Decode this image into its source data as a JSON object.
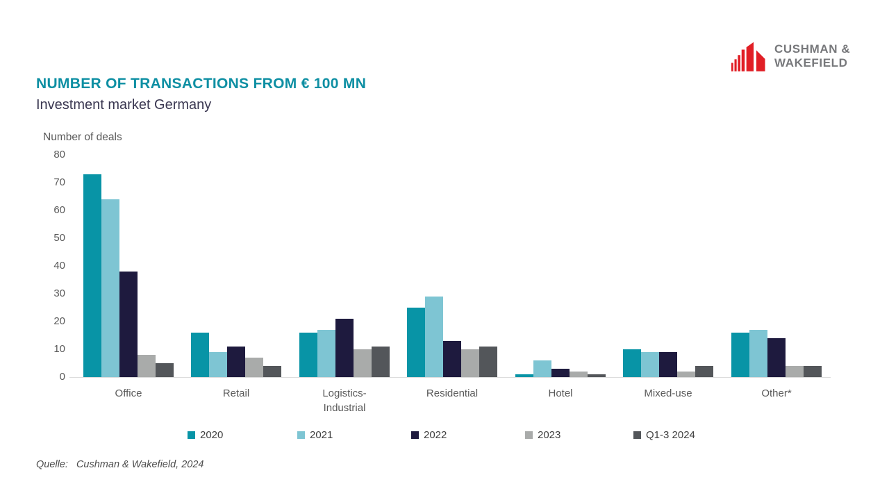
{
  "header": {
    "title": "NUMBER OF TRANSACTIONS FROM € 100 MN",
    "subtitle": "Investment market Germany"
  },
  "logo": {
    "line1": "CUSHMAN &",
    "line2": "WAKEFIELD",
    "mark_color": "#E11F26",
    "text_color": "#77787B"
  },
  "source": {
    "label": "Quelle:",
    "value": "Cushman & Wakefield, 2024"
  },
  "chart_data": {
    "type": "bar",
    "title": "NUMBER OF TRANSACTIONS FROM € 100 MN",
    "subtitle": "Investment market Germany",
    "xlabel": "",
    "ylabel": "Number of deals",
    "ylim": [
      0,
      80
    ],
    "ytick_step": 10,
    "grid": false,
    "legend_position": "bottom",
    "categories": [
      "Office",
      "Retail",
      "Logistics-Industrial",
      "Residential",
      "Hotel",
      "Mixed-use",
      "Other*"
    ],
    "series": [
      {
        "name": "2020",
        "color": "#0894A6",
        "values": [
          73,
          16,
          16,
          25,
          1,
          10,
          16
        ]
      },
      {
        "name": "2021",
        "color": "#7EC5D3",
        "values": [
          64,
          9,
          17,
          29,
          6,
          9,
          17
        ]
      },
      {
        "name": "2022",
        "color": "#1E1A3E",
        "values": [
          38,
          11,
          21,
          13,
          3,
          9,
          14
        ]
      },
      {
        "name": "2023",
        "color": "#A9ABAA",
        "values": [
          8,
          7,
          10,
          10,
          2,
          2,
          4
        ]
      },
      {
        "name": "Q1-3 2024",
        "color": "#53565A",
        "values": [
          5,
          4,
          11,
          11,
          1,
          4,
          4
        ]
      }
    ]
  }
}
